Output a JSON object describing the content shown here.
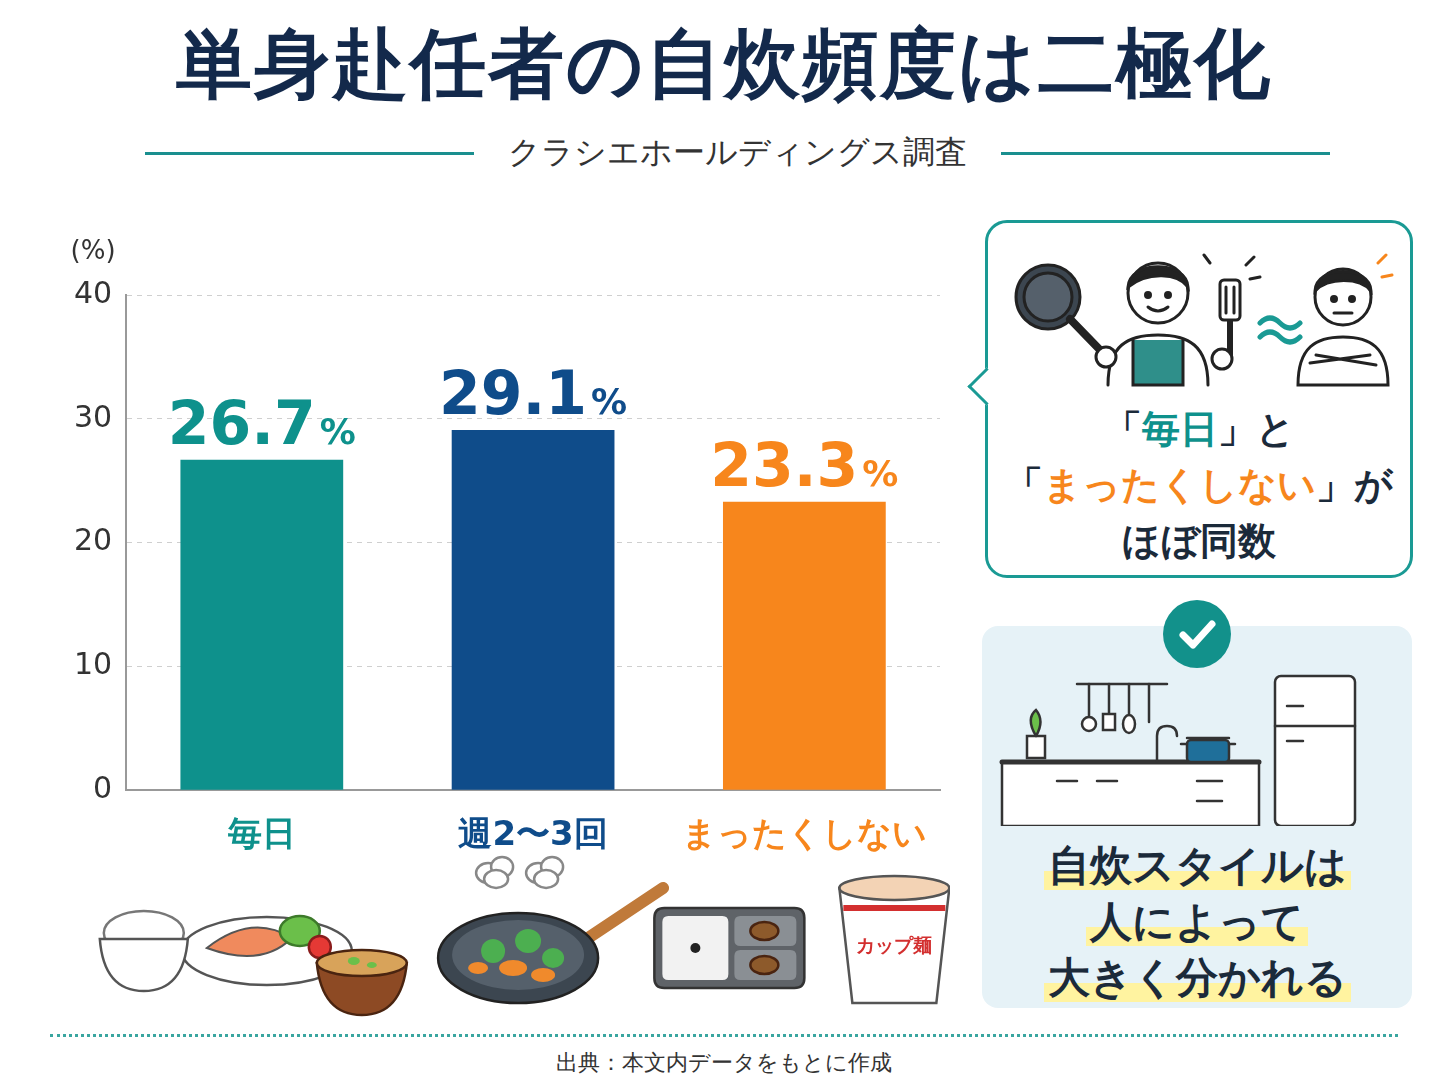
{
  "chart_data": {
    "type": "bar",
    "title": "単身赴任者の自炊頻度は二極化",
    "subtitle": "クラシエホールディングス調査",
    "y_label": "(%)",
    "categories": [
      "毎日",
      "週2〜3回",
      "まったくしない"
    ],
    "values": [
      26.7,
      29.1,
      23.3
    ],
    "value_labels": [
      "26.7%",
      "29.1%",
      "23.3%"
    ],
    "colors": [
      "#0e918c",
      "#0f4c8a",
      "#f7861c"
    ],
    "ylim": [
      0,
      40
    ],
    "yticks": [
      0,
      10,
      20,
      30,
      40
    ],
    "grid": true,
    "data_labels": true,
    "annotations": {
      "callout": [
        [
          {
            "text": "「"
          },
          {
            "text": "毎日",
            "color": "#0e918c"
          },
          {
            "text": "」と"
          }
        ],
        [
          {
            "text": "「"
          },
          {
            "text": "まったくしない",
            "color": "#f7861c"
          },
          {
            "text": "」が"
          }
        ],
        [
          {
            "text": "ほぼ同数"
          }
        ]
      ],
      "conclusion": [
        "自炊スタイルは",
        "人によって",
        "大きく分かれる"
      ],
      "icon_label": "カップ麺"
    },
    "source": "出典：本文内データをもとに作成"
  }
}
